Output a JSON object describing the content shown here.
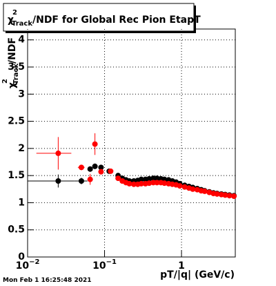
{
  "chart_data": {
    "type": "scatter",
    "title": {
      "symbol": "χ",
      "sup": "2",
      "sub": "Track",
      "text": "/NDF for Global Rec Pion EtapT"
    },
    "y_label": {
      "symbol": "χ",
      "sup": "2",
      "sub": "Track",
      "text": "/NDF"
    },
    "x_label": "pT/|q| (GeV/c)",
    "timestamp": "Mon Feb  1 16:25:48 2021",
    "log_x": true,
    "grid": true,
    "xlim": [
      0.01,
      5
    ],
    "ylim": [
      0,
      4.2
    ],
    "xticks": [
      {
        "value": 0.01,
        "label": "10",
        "exponent": "−2"
      },
      {
        "value": 0.1,
        "label": "10",
        "exponent": "−1"
      },
      1
    ],
    "yticks": [
      0,
      0.5,
      1,
      1.5,
      2,
      2.5,
      3,
      3.5,
      4
    ],
    "series": [
      {
        "color": "#000000",
        "x": [
          0.025,
          0.05,
          0.065,
          0.075,
          0.09,
          0.115,
          0.15,
          0.17,
          0.19,
          0.21,
          0.24,
          0.27,
          0.3,
          0.34,
          0.38,
          0.43,
          0.48,
          0.54,
          0.6,
          0.68,
          0.76,
          0.85,
          0.95,
          1.1,
          1.25,
          1.4,
          1.6,
          1.8,
          2.0,
          2.3,
          2.6,
          2.9,
          3.3,
          3.7,
          4.2,
          4.8
        ],
        "values": [
          1.4,
          1.4,
          1.62,
          1.67,
          1.65,
          1.58,
          1.5,
          1.45,
          1.42,
          1.4,
          1.4,
          1.41,
          1.43,
          1.43,
          1.44,
          1.45,
          1.45,
          1.44,
          1.43,
          1.42,
          1.4,
          1.38,
          1.35,
          1.32,
          1.3,
          1.28,
          1.26,
          1.24,
          1.22,
          1.2,
          1.18,
          1.17,
          1.16,
          1.15,
          1.14,
          1.13
        ],
        "xerr": [
          0.015,
          0.01,
          0.005,
          0.005,
          0.005,
          0.005,
          0.008,
          0.009,
          0.01,
          0.011,
          0.012,
          0.014,
          0.015,
          0.017,
          0.019,
          0.022,
          0.024,
          0.027,
          0.03,
          0.034,
          0.038,
          0.043,
          0.048,
          0.055,
          0.063,
          0.07,
          0.08,
          0.09,
          0.1,
          0.12,
          0.13,
          0.15,
          0.17,
          0.19,
          0.21,
          0.24
        ],
        "yerr": [
          0.12,
          0.06,
          0.05,
          0.05,
          0.04,
          0.03,
          0.03,
          0.03,
          0.03,
          0.03,
          0.03,
          0.03,
          0.03,
          0.03,
          0.03,
          0.03,
          0.03,
          0.03,
          0.03,
          0.03,
          0.03,
          0.03,
          0.03,
          0.03,
          0.03,
          0.03,
          0.03,
          0.03,
          0.03,
          0.03,
          0.03,
          0.03,
          0.03,
          0.03,
          0.03,
          0.03
        ]
      },
      {
        "color": "#ff0000",
        "x": [
          0.025,
          0.05,
          0.065,
          0.075,
          0.09,
          0.12,
          0.15,
          0.17,
          0.19,
          0.21,
          0.24,
          0.27,
          0.3,
          0.34,
          0.38,
          0.43,
          0.48,
          0.54,
          0.6,
          0.68,
          0.76,
          0.85,
          0.95,
          1.1,
          1.25,
          1.4,
          1.6,
          1.8,
          2.0,
          2.3,
          2.6,
          2.9,
          3.3,
          3.7,
          4.2,
          4.8
        ],
        "values": [
          1.91,
          1.65,
          1.43,
          2.08,
          1.57,
          1.58,
          1.45,
          1.4,
          1.37,
          1.35,
          1.34,
          1.34,
          1.35,
          1.35,
          1.36,
          1.37,
          1.37,
          1.37,
          1.36,
          1.35,
          1.34,
          1.33,
          1.31,
          1.29,
          1.27,
          1.25,
          1.24,
          1.22,
          1.21,
          1.19,
          1.17,
          1.16,
          1.15,
          1.14,
          1.13,
          1.12
        ],
        "xerr": [
          0.012,
          0.005,
          0.005,
          0.005,
          0.005,
          0.005,
          0.008,
          0.009,
          0.01,
          0.011,
          0.012,
          0.014,
          0.015,
          0.017,
          0.019,
          0.022,
          0.024,
          0.027,
          0.03,
          0.034,
          0.038,
          0.043,
          0.048,
          0.055,
          0.063,
          0.07,
          0.08,
          0.09,
          0.1,
          0.12,
          0.13,
          0.15,
          0.17,
          0.19,
          0.21,
          0.24
        ],
        "yerr": [
          0.3,
          0.05,
          0.1,
          0.2,
          0.05,
          0.03,
          0.03,
          0.03,
          0.03,
          0.03,
          0.03,
          0.03,
          0.03,
          0.03,
          0.03,
          0.03,
          0.03,
          0.03,
          0.03,
          0.03,
          0.03,
          0.03,
          0.03,
          0.03,
          0.03,
          0.03,
          0.03,
          0.03,
          0.03,
          0.03,
          0.03,
          0.03,
          0.03,
          0.03,
          0.03,
          0.03
        ]
      }
    ]
  }
}
